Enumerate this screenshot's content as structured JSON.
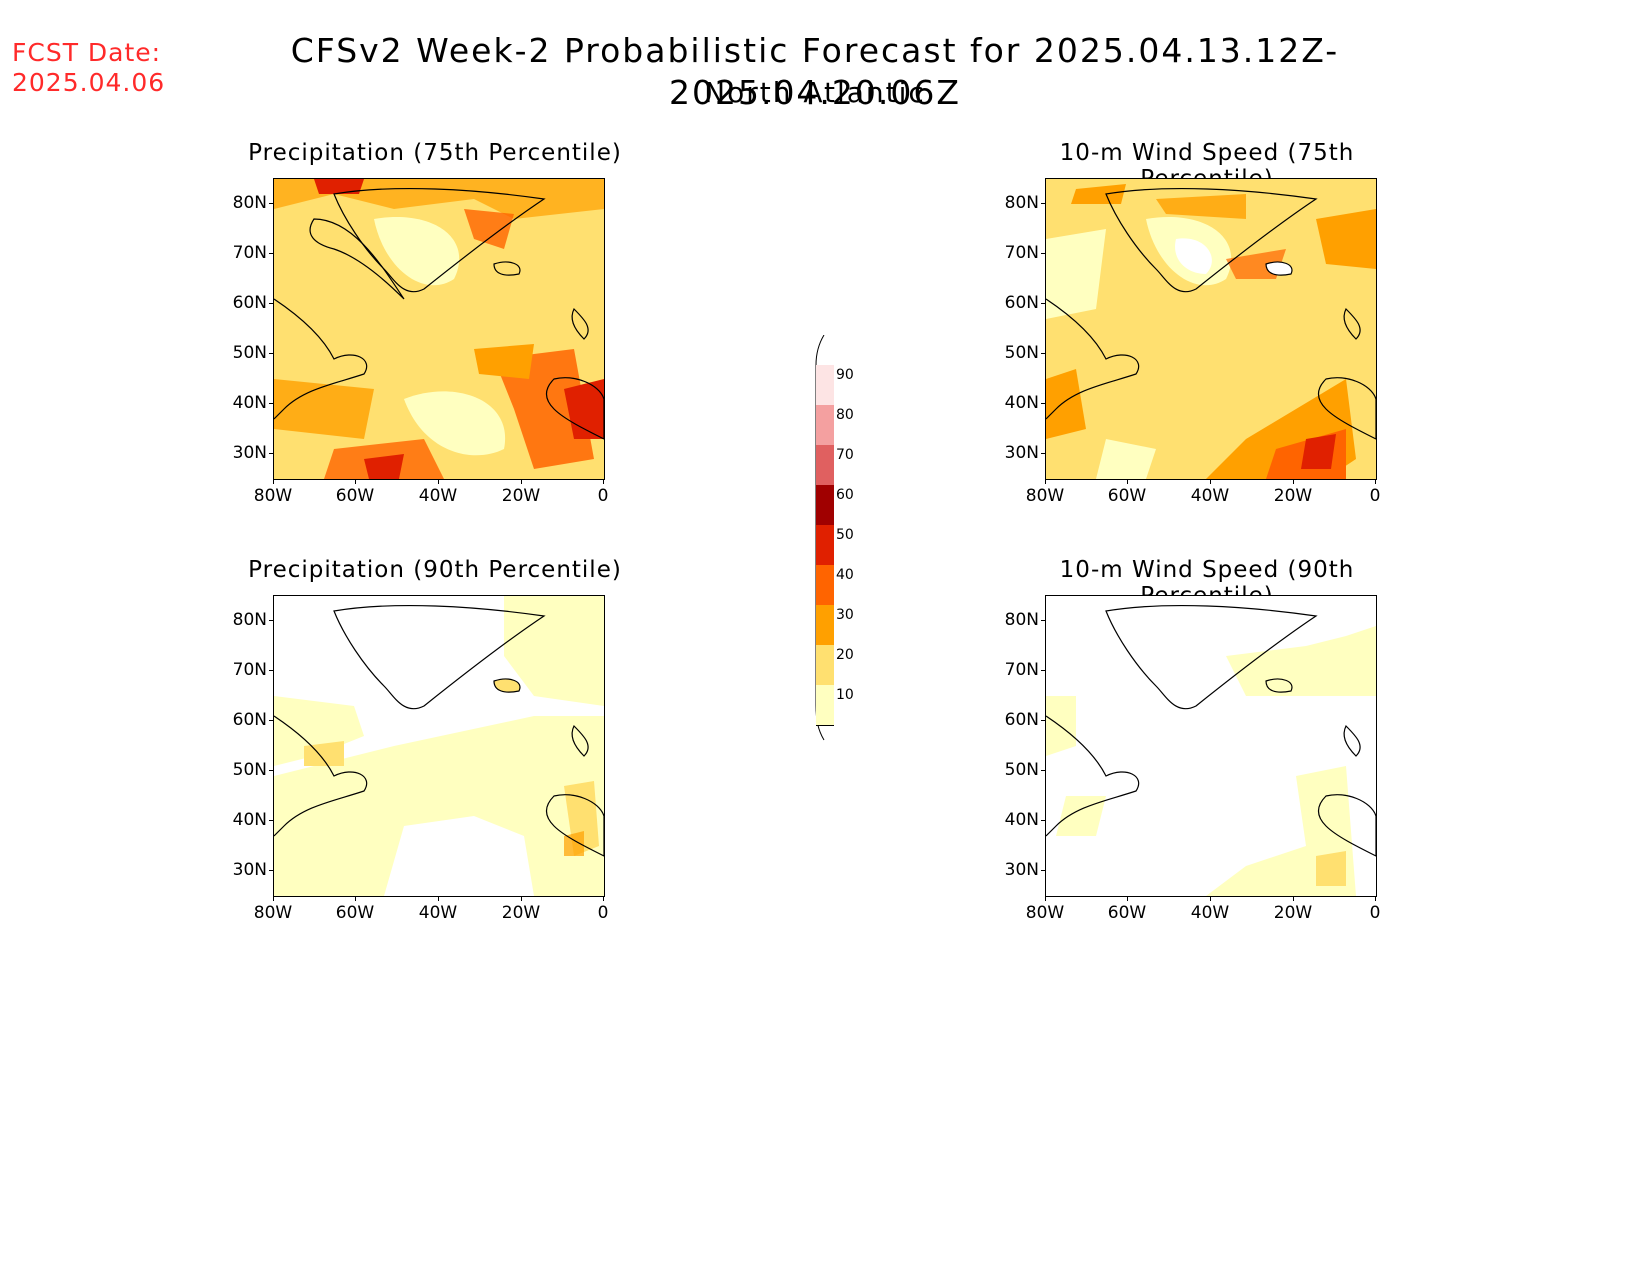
{
  "header": {
    "fcst_label": "FCST Date:",
    "fcst_date": "2025.04.06",
    "title": "CFSv2 Week-2 Probabilistic Forecast for 2025.04.13.12Z-2025.04.20.06Z",
    "region": "North Atlantic"
  },
  "axes": {
    "lat_labels": [
      "80N",
      "70N",
      "60N",
      "50N",
      "40N",
      "30N"
    ],
    "lon_labels": [
      "80W",
      "60W",
      "40W",
      "20W",
      "0"
    ]
  },
  "panels": [
    {
      "id": "precip75",
      "title": "Precipitation (75th Percentile)"
    },
    {
      "id": "wind75",
      "title": "10-m Wind Speed (75th Percentile)"
    },
    {
      "id": "precip90",
      "title": "Precipitation (90th Percentile)"
    },
    {
      "id": "wind90",
      "title": "10-m Wind Speed (90th Percentile)"
    }
  ],
  "colorbar": {
    "levels": [
      "90",
      "80",
      "70",
      "60",
      "50",
      "40",
      "30",
      "20",
      "10"
    ],
    "colors": [
      "#fde4e4",
      "#f4a0a0",
      "#e06060",
      "#a00000",
      "#e02000",
      "#ff6400",
      "#ffa000",
      "#ffe070",
      "#ffffc0"
    ]
  }
}
